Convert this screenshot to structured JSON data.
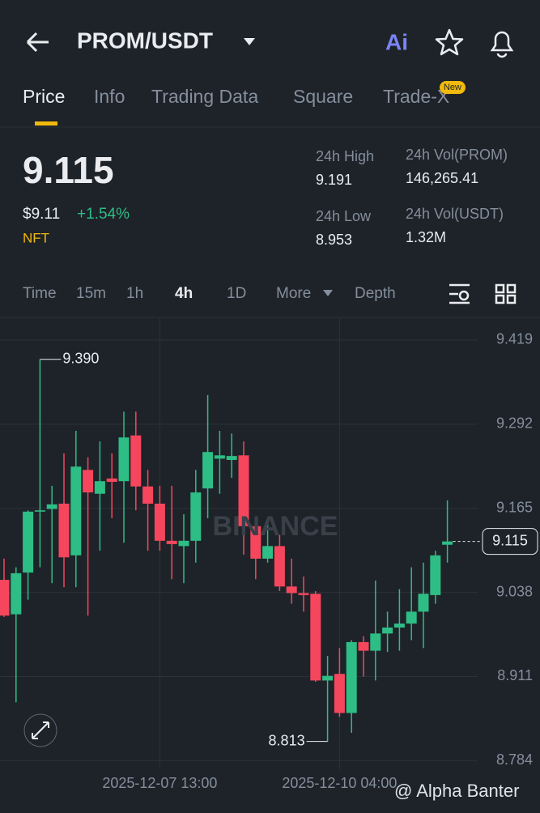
{
  "header": {
    "title": "PROM/USDT",
    "ai": "Ai"
  },
  "tabs": [
    "Price",
    "Info",
    "Trading Data",
    "Square",
    "Trade-X"
  ],
  "badge": "New",
  "price": {
    "last": "9.115",
    "usd": "$9.11",
    "change": "+1.54%",
    "tag": "NFT"
  },
  "stats": [
    {
      "label": "24h High",
      "value": "9.191"
    },
    {
      "label": "24h Vol(PROM)",
      "value": "146,265.41"
    },
    {
      "label": "24h Low",
      "value": "8.953"
    },
    {
      "label": "24h Vol(USDT)",
      "value": "1.32M"
    }
  ],
  "intervals": [
    "Time",
    "15m",
    "1h",
    "4h",
    "1D",
    "More",
    "Depth"
  ],
  "watermark": "BINANCE",
  "credit": "@ Alpha Banter",
  "chart_data": {
    "type": "candlestick",
    "categories": [
      null,
      null,
      null,
      null,
      null,
      null,
      null,
      null,
      null,
      null,
      null,
      null,
      null,
      "2025-12-07 13:00",
      null,
      null,
      null,
      null,
      null,
      null,
      null,
      null,
      null,
      null,
      null,
      null,
      null,
      null,
      "2025-12-10 04:00",
      null,
      null,
      null,
      null,
      null,
      null,
      null,
      null,
      null
    ],
    "open": [
      9.057,
      9.005,
      9.068,
      9.16,
      9.164,
      9.172,
      9.094,
      9.223,
      9.187,
      9.21,
      9.206,
      9.275,
      9.198,
      9.172,
      9.116,
      9.108,
      9.116,
      9.195,
      9.24,
      9.238,
      9.245,
      9.138,
      9.089,
      9.108,
      9.047,
      9.037,
      9.036,
      8.905,
      8.915,
      8.856,
      8.963,
      8.95,
      8.976,
      8.985,
      8.991,
      9.009,
      9.034,
      9.11
    ],
    "high": [
      9.089,
      9.076,
      9.162,
      9.39,
      9.199,
      9.248,
      9.282,
      9.242,
      9.266,
      9.248,
      9.311,
      9.311,
      9.223,
      9.199,
      9.199,
      9.156,
      9.223,
      9.336,
      9.282,
      9.278,
      9.266,
      9.144,
      9.144,
      9.125,
      9.089,
      9.062,
      9.04,
      8.942,
      8.954,
      8.966,
      8.972,
      9.056,
      9.009,
      9.043,
      9.076,
      9.083,
      9.101,
      9.177
    ],
    "low": [
      9.001,
      8.872,
      9.027,
      9.076,
      9.052,
      9.046,
      9.046,
      9.003,
      9.101,
      9.15,
      9.113,
      9.162,
      9.101,
      9.101,
      9.058,
      9.052,
      9.083,
      9.15,
      9.187,
      9.211,
      9.095,
      9.058,
      9.083,
      9.04,
      9.021,
      9.009,
      8.903,
      8.813,
      8.85,
      8.826,
      8.911,
      8.905,
      8.948,
      8.95,
      8.966,
      8.954,
      9.021,
      9.083
    ],
    "close": [
      9.003,
      9.067,
      9.16,
      9.162,
      9.171,
      9.091,
      9.228,
      9.189,
      9.206,
      9.205,
      9.272,
      9.198,
      9.172,
      9.116,
      9.111,
      9.116,
      9.189,
      9.25,
      9.245,
      9.244,
      9.138,
      9.089,
      9.108,
      9.047,
      9.037,
      9.034,
      8.905,
      8.912,
      8.856,
      8.963,
      8.95,
      8.976,
      8.985,
      8.991,
      9.009,
      9.036,
      9.094,
      9.115
    ],
    "up_color": "#2ebd85",
    "down_color": "#f6465d",
    "ylim": [
      8.771,
      9.452
    ],
    "yticks": [
      9.419,
      9.292,
      9.165,
      9.038,
      8.911,
      8.784
    ],
    "grid": true,
    "high_label": "9.390",
    "low_label": "8.813",
    "last_label": "9.115"
  }
}
